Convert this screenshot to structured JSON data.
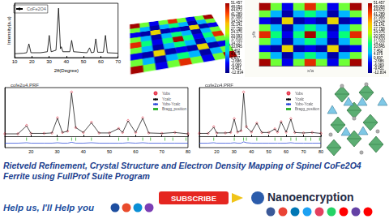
{
  "title": "Rietveld Refinement, Crystal Structure and Electron Density Mapping of Spinel CoFe2O4 Ferrite using FullProf Suite Program",
  "banner": {
    "text": "Help us, I'll Help you",
    "button": "SUBSCRIBE",
    "channel": "Nanoencryption"
  },
  "electron_density": {
    "x_label": "x/a",
    "y_label": "y/b",
    "cells": [
      [
        51,
        20,
        -5,
        20,
        45,
        20,
        -5,
        20,
        51
      ],
      [
        20,
        5,
        -10,
        5,
        15,
        5,
        -10,
        5,
        20
      ],
      [
        -5,
        -10,
        30,
        -10,
        -5,
        -10,
        30,
        -10,
        -5
      ],
      [
        20,
        5,
        -10,
        5,
        15,
        5,
        -10,
        5,
        20
      ],
      [
        45,
        15,
        -5,
        15,
        51,
        15,
        -5,
        15,
        45
      ],
      [
        20,
        5,
        -10,
        5,
        15,
        5,
        -10,
        5,
        20
      ],
      [
        -5,
        -10,
        30,
        -10,
        -5,
        -10,
        30,
        -10,
        -5
      ],
      [
        20,
        5,
        -10,
        5,
        15,
        5,
        -10,
        5,
        20
      ],
      [
        51,
        20,
        -5,
        20,
        45,
        20,
        -5,
        20,
        51
      ]
    ],
    "colorbar_ticks": [
      51.457,
      48.054,
      44.672,
      41.289,
      37.906,
      34.524,
      31.141,
      27.758,
      24.375,
      20.993,
      {
        "value": 17.61,
        "label": "17.610"
      },
      14.227,
      10.845,
      7.462,
      4.079,
      0.697,
      -2.686,
      -6.069,
      -9.451,
      -12.834
    ]
  },
  "chart_data": [
    {
      "type": "line",
      "x_label": "2θ(Degree)",
      "y_label": "Intensity(a.u)",
      "series": [
        {
          "name": "CoFe2O4",
          "color": "#000000",
          "x": [
            10,
            15,
            17,
            18.3,
            19.5,
            25,
            29,
            30.1,
            31.2,
            34,
            35.5,
            36.6,
            37.1,
            38,
            42,
            43.1,
            44.2,
            52,
            53.5,
            54.5,
            56,
            57.1,
            58.2,
            61.5,
            62.7,
            63.8,
            70
          ],
          "values": [
            8,
            9,
            10,
            28,
            10,
            10,
            12,
            45,
            12,
            15,
            100,
            18,
            22,
            12,
            12,
            35,
            12,
            10,
            20,
            10,
            11,
            38,
            11,
            11,
            45,
            10,
            9
          ]
        }
      ],
      "xlim": [
        10,
        70
      ],
      "xticks": [
        10,
        20,
        30,
        40,
        50,
        60,
        70
      ],
      "ylim": [
        0,
        110
      ],
      "tick_labels": "x",
      "legend": "top-left",
      "grid": false
    },
    {
      "type": "rietveld",
      "title": "cofe2o4.PRF",
      "x": [
        10,
        15,
        18.3,
        20,
        25,
        28,
        30.1,
        32,
        34,
        35.5,
        37.1,
        40,
        43.1,
        46,
        50,
        53.5,
        55,
        57.1,
        60,
        62.7,
        65,
        70,
        75,
        80
      ],
      "series": [
        {
          "name": "Yobs",
          "type": "scatter",
          "marker": "circle",
          "color": "#e0001b",
          "values": [
            6,
            6,
            25,
            7,
            7,
            8,
            42,
            9,
            12,
            100,
            20,
            9,
            32,
            8,
            8,
            18,
            9,
            36,
            9,
            42,
            8,
            7,
            9,
            6
          ]
        },
        {
          "name": "Ycalc",
          "type": "line",
          "color": "#000000",
          "values": [
            6,
            6,
            24,
            7,
            7,
            8,
            41,
            9,
            12,
            98,
            20,
            9,
            31,
            8,
            8,
            18,
            9,
            35,
            9,
            41,
            8,
            7,
            9,
            6
          ]
        },
        {
          "name": "Yobs-Ycalc",
          "type": "line",
          "color": "#1f3fd6",
          "values": [
            -15,
            -15,
            -14,
            -15,
            -15,
            -15,
            -14,
            -15,
            -15,
            -13,
            -15,
            -15,
            -14,
            -15,
            -15,
            -15,
            -15,
            -14,
            -15,
            -14,
            -15,
            -15,
            -15,
            -15
          ]
        },
        {
          "name": "Bragg_position",
          "type": "bragg",
          "color": "#00a000",
          "positions": [
            18.3,
            30.1,
            35.5,
            37.1,
            43.1,
            53.5,
            57.1,
            62.7,
            65.7,
            71.2,
            74.2,
            79.2
          ],
          "level": -6
        }
      ],
      "xlim": [
        10,
        80
      ],
      "xticks": [
        20,
        30,
        40,
        50,
        60,
        70,
        80
      ],
      "ylim": [
        -25,
        110
      ],
      "tick_labels": "x",
      "legend": "top-right",
      "grid": false
    },
    {
      "type": "rietveld",
      "title": "cofe2o4.PRF",
      "x": [
        10,
        15,
        18.3,
        20,
        25,
        28,
        30.1,
        32,
        34,
        35.5,
        37.1,
        40,
        43.1,
        46,
        50,
        53.5,
        55,
        57.1,
        60,
        62.7,
        65,
        70,
        75,
        80
      ],
      "series": [
        {
          "name": "Yobs",
          "type": "scatter",
          "marker": "circle",
          "color": "#e0001b",
          "values": [
            7,
            7,
            22,
            8,
            8,
            9,
            40,
            10,
            13,
            100,
            22,
            10,
            30,
            9,
            9,
            17,
            10,
            33,
            10,
            40,
            9,
            8,
            9,
            7
          ]
        },
        {
          "name": "Ycalc",
          "type": "line",
          "color": "#000000",
          "values": [
            7,
            7,
            21,
            8,
            8,
            9,
            39,
            10,
            13,
            97,
            21,
            10,
            30,
            9,
            9,
            17,
            10,
            33,
            10,
            39,
            9,
            8,
            9,
            7
          ]
        },
        {
          "name": "Yobs-Ycalc",
          "type": "line",
          "color": "#1f3fd6",
          "values": [
            -15,
            -15,
            -14,
            -15,
            -15,
            -15,
            -14,
            -15,
            -15,
            -12,
            -14,
            -15,
            -15,
            -15,
            -15,
            -15,
            -15,
            -15,
            -15,
            -14,
            -15,
            -15,
            -15,
            -15
          ]
        },
        {
          "name": "Bragg_position",
          "type": "bragg",
          "color": "#00a000",
          "positions": [
            18.3,
            30.1,
            35.5,
            37.1,
            43.1,
            53.5,
            57.1,
            62.7,
            65.7,
            71.2,
            74.2,
            79.2
          ],
          "level": -6
        }
      ],
      "xlim": [
        10,
        80
      ],
      "xticks": [
        20,
        30,
        40,
        50,
        60,
        70,
        80
      ],
      "ylim": [
        -25,
        110
      ],
      "tick_labels": "x",
      "legend": "top-right",
      "grid": false
    }
  ]
}
